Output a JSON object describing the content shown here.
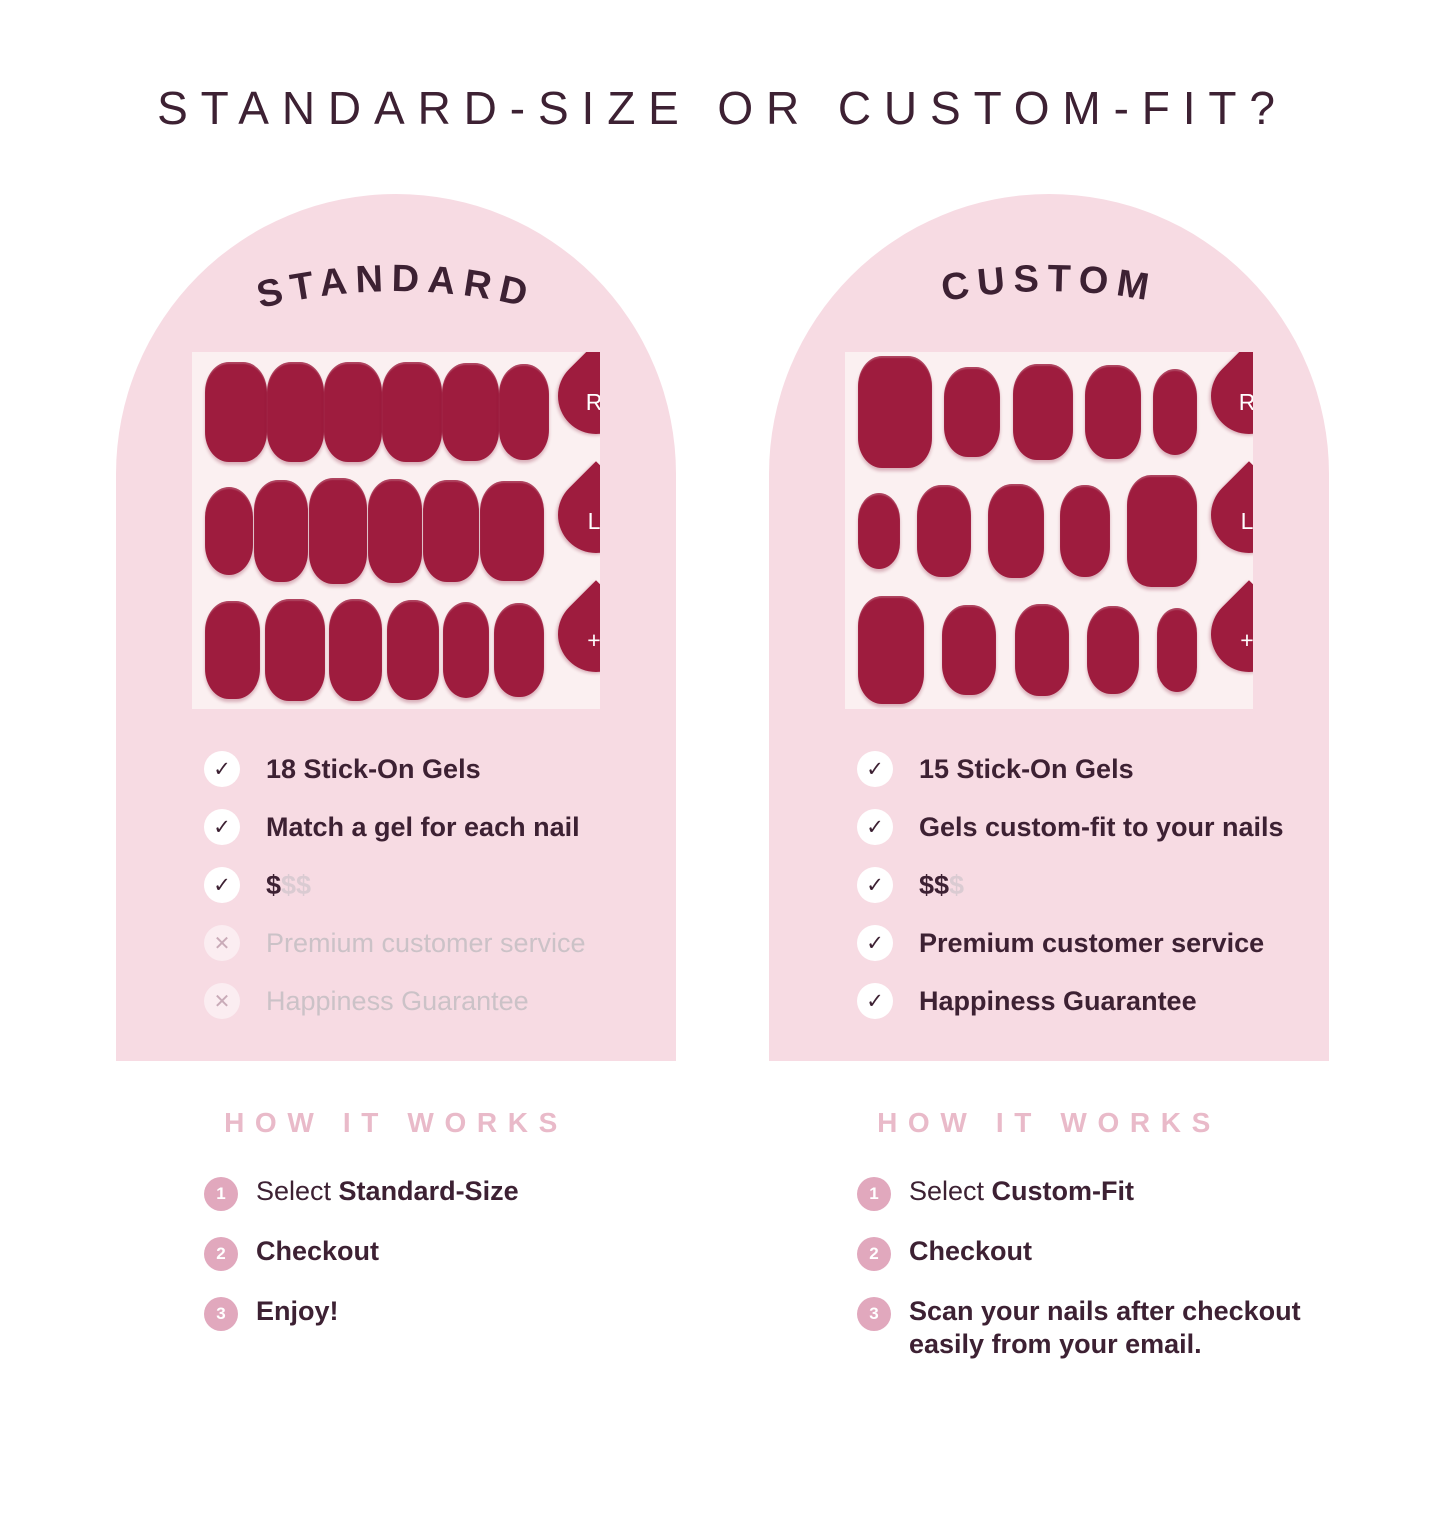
{
  "title": "STANDARD-SIZE OR CUSTOM-FIT?",
  "colors": {
    "background": "#ffffff",
    "arch_pink": "#f7dbe3",
    "sheet_background": "#fbf0f1",
    "nail_red": "#9e1c3e",
    "dark_plum": "#3d2133",
    "muted_gray_pink": "#cbc2c7",
    "muted_dollar": "#dacbd2",
    "hiw_pink": "#e9bac9",
    "step_badge_pink": "#e1a8bd"
  },
  "cards": [
    {
      "arch_label": "STANDARD",
      "sheet": {
        "tabs": [
          "R",
          "L",
          "+"
        ],
        "rows": [
          [
            [
              62,
              100
            ],
            [
              57,
              100
            ],
            [
              58,
              100
            ],
            [
              60,
              100
            ],
            [
              57,
              98
            ],
            [
              50,
              96
            ]
          ],
          [
            [
              48,
              88
            ],
            [
              54,
              102
            ],
            [
              58,
              106
            ],
            [
              54,
              104
            ],
            [
              56,
              102
            ],
            [
              64,
              100
            ]
          ],
          [
            [
              55,
              98
            ],
            [
              60,
              102
            ],
            [
              53,
              102
            ],
            [
              52,
              100
            ],
            [
              46,
              96
            ],
            [
              50,
              94
            ]
          ]
        ]
      },
      "features": [
        {
          "state": "check",
          "text": "18 Stick-On Gels"
        },
        {
          "state": "check",
          "text": "Match a gel for each nail"
        },
        {
          "state": "check",
          "text": "$",
          "muted": "$$"
        },
        {
          "state": "cross",
          "text": "Premium customer service"
        },
        {
          "state": "cross",
          "text": "Happiness Guarantee"
        }
      ],
      "how_it_works": {
        "heading": "HOW IT WORKS",
        "steps": [
          {
            "num": "1",
            "prefix": "Select ",
            "bold": "Standard-Size"
          },
          {
            "num": "2",
            "prefix": "",
            "bold": "Checkout"
          },
          {
            "num": "3",
            "prefix": "",
            "bold": "Enjoy!"
          }
        ]
      }
    },
    {
      "arch_label": "CUSTOM",
      "sheet": {
        "tabs": [
          "R",
          "L",
          "+"
        ],
        "rows": [
          [
            [
              74,
              112
            ],
            [
              56,
              90
            ],
            [
              60,
              96
            ],
            [
              56,
              94
            ],
            [
              44,
              86
            ]
          ],
          [
            [
              42,
              76
            ],
            [
              54,
              92
            ],
            [
              56,
              94
            ],
            [
              50,
              92
            ],
            [
              70,
              112
            ]
          ],
          [
            [
              66,
              108
            ],
            [
              54,
              90
            ],
            [
              54,
              92
            ],
            [
              52,
              88
            ],
            [
              40,
              84
            ]
          ]
        ]
      },
      "features": [
        {
          "state": "check",
          "text": "15 Stick-On Gels"
        },
        {
          "state": "check",
          "text": "Gels custom-fit to your nails"
        },
        {
          "state": "check",
          "text": "$$",
          "muted": "$"
        },
        {
          "state": "check",
          "text": "Premium customer service"
        },
        {
          "state": "check",
          "text": "Happiness Guarantee"
        }
      ],
      "how_it_works": {
        "heading": "HOW IT WORKS",
        "steps": [
          {
            "num": "1",
            "prefix": "Select ",
            "bold": "Custom-Fit"
          },
          {
            "num": "2",
            "prefix": "",
            "bold": "Checkout"
          },
          {
            "num": "3",
            "prefix": "",
            "bold": "Scan your nails after checkout\neasily from your email."
          }
        ]
      }
    }
  ]
}
